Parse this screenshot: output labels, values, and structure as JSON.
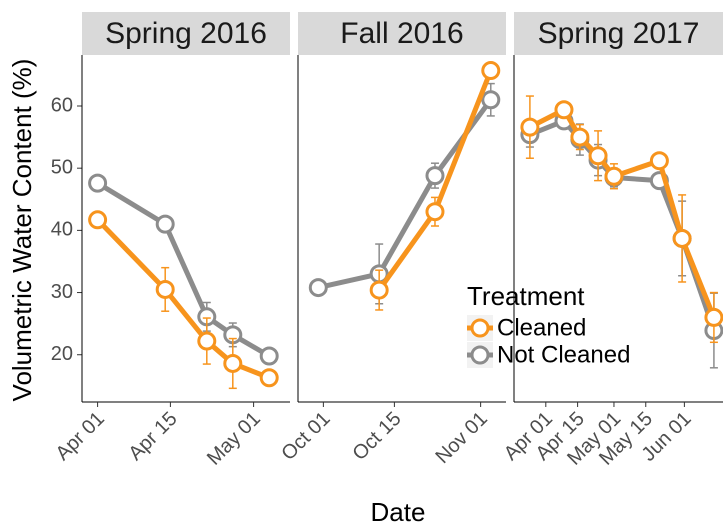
{
  "chart_data": {
    "type": "line",
    "ylabel": "Volumetric Water Content (%)",
    "xlabel": "Date",
    "legend_title": "Treatment",
    "ylim": [
      12.4,
      68.2
    ],
    "yticks": [
      20,
      30,
      40,
      50,
      60
    ],
    "series": [
      {
        "name": "Cleaned",
        "color": "#f7941d"
      },
      {
        "name": "Not Cleaned",
        "color": "#8c8c8c"
      }
    ],
    "panels": [
      {
        "title": "Spring 2016",
        "xlim": [
          "2016-03-29",
          "2016-05-08"
        ],
        "xticks": [
          {
            "value": "2016-04-01",
            "label": "Apr 01"
          },
          {
            "value": "2016-04-15",
            "label": "Apr 15"
          },
          {
            "value": "2016-05-01",
            "label": "May 01"
          }
        ],
        "x": [
          "2016-04-01",
          "2016-04-14",
          "2016-04-22",
          "2016-04-27",
          "2016-05-04"
        ],
        "values": [
          [
            41.7,
            30.5,
            22.2,
            18.6,
            16.3
          ],
          [
            47.6,
            41.0,
            26.1,
            23.2,
            19.8
          ]
        ],
        "errors": [
          [
            0.5,
            3.5,
            3.7,
            4.0,
            0.5
          ],
          [
            0.5,
            0.5,
            2.3,
            1.9,
            1.0
          ]
        ]
      },
      {
        "title": "Fall 2016",
        "xlim": [
          "2016-09-26",
          "2016-11-06"
        ],
        "xticks": [
          {
            "value": "2016-10-01",
            "label": "Oct 01"
          },
          {
            "value": "2016-10-15",
            "label": "Oct 15"
          },
          {
            "value": "2016-11-01",
            "label": "Nov 01"
          }
        ],
        "x": [
          "2016-09-30",
          "2016-10-12",
          "2016-10-23",
          "2016-11-03"
        ],
        "values": [
          [
            null,
            30.4,
            43.0,
            65.7
          ],
          [
            30.8,
            33.0,
            48.8,
            61.0
          ]
        ],
        "errors": [
          [
            null,
            3.2,
            2.3,
            1.0
          ],
          [
            0.3,
            4.8,
            2.0,
            2.6
          ]
        ]
      },
      {
        "title": "Spring 2017",
        "xlim": [
          "2017-03-18",
          "2017-06-18"
        ],
        "xticks": [
          {
            "value": "2017-04-01",
            "label": "Apr 01"
          },
          {
            "value": "2017-04-15",
            "label": "Apr 15"
          },
          {
            "value": "2017-05-01",
            "label": "May 01"
          },
          {
            "value": "2017-05-15",
            "label": "May 15"
          },
          {
            "value": "2017-06-01",
            "label": "Jun 01"
          }
        ],
        "x": [
          "2017-03-25",
          "2017-04-09",
          "2017-04-16",
          "2017-04-24",
          "2017-05-01",
          "2017-05-21",
          "2017-05-31",
          "2017-06-14"
        ],
        "values": [
          [
            56.6,
            59.4,
            55.0,
            52.0,
            48.7,
            51.2,
            38.7,
            26.0
          ],
          [
            55.4,
            57.6,
            54.6,
            51.3,
            48.5,
            48.0,
            38.7,
            23.9
          ]
        ],
        "errors": [
          [
            5.0,
            0.5,
            2.0,
            4.0,
            2.0,
            0.5,
            7.0,
            4.0
          ],
          [
            2.0,
            0.5,
            2.5,
            2.5,
            1.5,
            0.5,
            6.0,
            6.0
          ]
        ]
      }
    ]
  }
}
